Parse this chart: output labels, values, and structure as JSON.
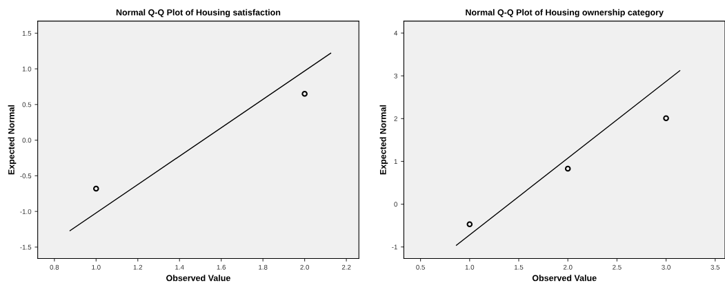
{
  "chart_data": [
    {
      "type": "scatter",
      "title": "Normal Q-Q Plot of Housing satisfaction",
      "xlabel": "Observed Value",
      "ylabel": "Expected Normal",
      "xlim": [
        0.72,
        2.26
      ],
      "ylim": [
        -1.66,
        1.67
      ],
      "xticks": [
        {
          "value": 0.8,
          "label": "0.8"
        },
        {
          "value": 1.0,
          "label": "1.0"
        },
        {
          "value": 1.2,
          "label": "1.2"
        },
        {
          "value": 1.4,
          "label": "1.4"
        },
        {
          "value": 1.6,
          "label": "1.6"
        },
        {
          "value": 1.8,
          "label": "1.8"
        },
        {
          "value": 2.0,
          "label": "2.0"
        },
        {
          "value": 2.2,
          "label": "2.2"
        }
      ],
      "yticks": [
        {
          "value": -1.5,
          "label": "-1.5"
        },
        {
          "value": -1.0,
          "label": "-1.0"
        },
        {
          "value": -0.5,
          "label": "-0.5"
        },
        {
          "value": 0.0,
          "label": "0.0"
        },
        {
          "value": 0.5,
          "label": "0.5"
        },
        {
          "value": 1.0,
          "label": "1.0"
        },
        {
          "value": 1.5,
          "label": "1.5"
        }
      ],
      "grid": false,
      "series": [
        {
          "color": "#000000",
          "marker": "circle",
          "x": [
            1,
            2
          ],
          "values": [
            -0.68,
            0.65
          ]
        },
        {
          "type": "line",
          "color": "#000000",
          "marker": "none",
          "x": [
            0.875,
            2.125
          ],
          "values": [
            -1.27,
            1.22
          ]
        }
      ]
    },
    {
      "type": "scatter",
      "title": "Normal Q-Q Plot of Housing ownership category",
      "xlabel": "Observed Value",
      "ylabel": "Expected Normal",
      "xlim": [
        0.33,
        3.6
      ],
      "ylim": [
        -1.27,
        4.28
      ],
      "xticks": [
        {
          "value": 0.5,
          "label": "0.5"
        },
        {
          "value": 1.0,
          "label": "1.0"
        },
        {
          "value": 1.5,
          "label": "1.5"
        },
        {
          "value": 2.0,
          "label": "2.0"
        },
        {
          "value": 2.5,
          "label": "2.5"
        },
        {
          "value": 3.0,
          "label": "3.0"
        },
        {
          "value": 3.5,
          "label": "3.5"
        }
      ],
      "yticks": [
        -1,
        0,
        1,
        2,
        3,
        4
      ],
      "grid": false,
      "series": [
        {
          "color": "#000000",
          "marker": "circle",
          "x": [
            1,
            2,
            3
          ],
          "values": [
            -0.47,
            0.83,
            2.01
          ]
        },
        {
          "type": "line",
          "color": "#000000",
          "marker": "none",
          "x": [
            0.865,
            3.14
          ],
          "values": [
            -0.96,
            3.12
          ]
        }
      ]
    }
  ]
}
